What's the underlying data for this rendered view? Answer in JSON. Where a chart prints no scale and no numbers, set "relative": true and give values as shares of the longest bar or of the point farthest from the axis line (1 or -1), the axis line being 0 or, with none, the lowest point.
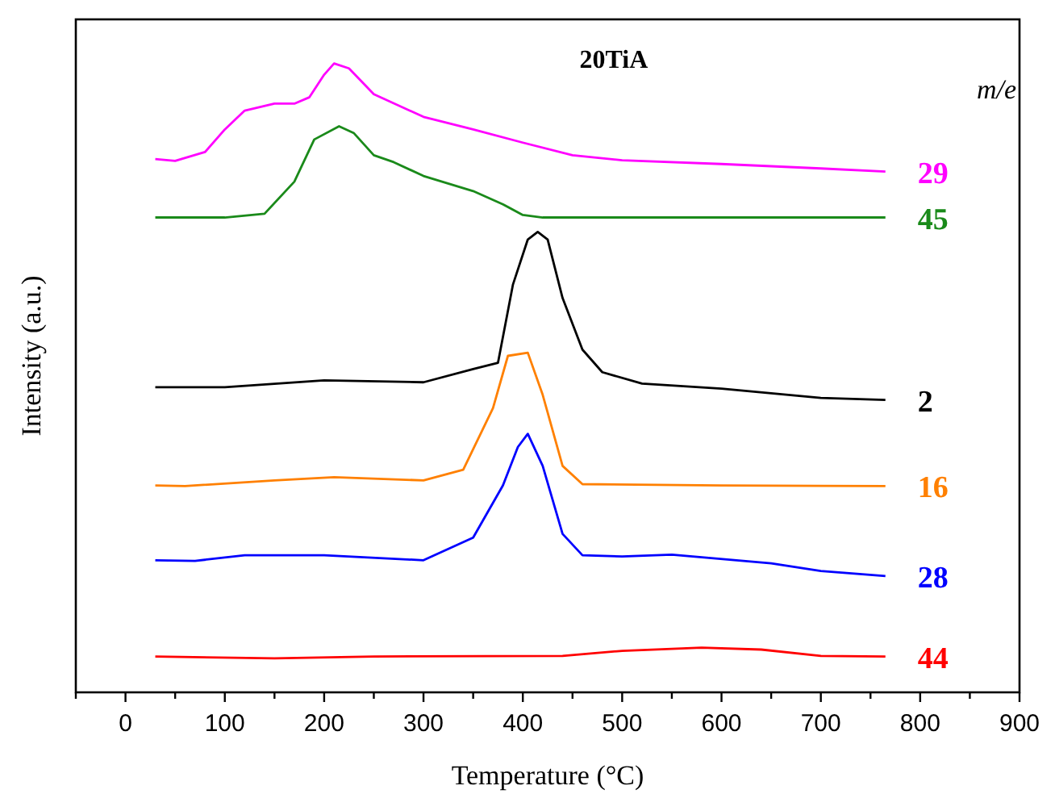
{
  "chart_data": {
    "type": "line",
    "title": "20TiA",
    "xlabel": "Temperature (°C)",
    "ylabel": "Intensity (a.u.)",
    "legend_title": "m/e",
    "relative": true,
    "xlim": [
      -50,
      900
    ],
    "xticks": [
      {
        "value": -50,
        "label": null
      },
      0,
      {
        "value": 50,
        "label": null
      },
      100,
      {
        "value": 150,
        "label": null
      },
      200,
      {
        "value": 250,
        "label": null
      },
      300,
      {
        "value": 350,
        "label": null
      },
      400,
      {
        "value": 450,
        "label": null
      },
      500,
      {
        "value": 550,
        "label": null
      },
      600,
      {
        "value": 650,
        "label": null
      },
      700,
      {
        "value": 750,
        "label": null
      },
      800,
      {
        "value": 850,
        "label": null
      },
      900
    ],
    "grid": false,
    "marker": "none",
    "line_style": "solid",
    "series": [
      {
        "name": "29",
        "color": "#ff00ff",
        "x": [
          30,
          50,
          80,
          100,
          120,
          150,
          170,
          185,
          200,
          210,
          225,
          250,
          300,
          350,
          400,
          450,
          500,
          600,
          700,
          765
        ],
        "values": [
          0.848,
          0.845,
          0.859,
          0.895,
          0.925,
          0.936,
          0.936,
          0.946,
          0.982,
          1.0,
          0.992,
          0.951,
          0.915,
          0.895,
          0.874,
          0.854,
          0.846,
          0.84,
          0.833,
          0.828
        ]
      },
      {
        "name": "45",
        "color": "#1a8a1a",
        "x": [
          30,
          100,
          140,
          170,
          190,
          215,
          230,
          250,
          270,
          300,
          350,
          380,
          400,
          420,
          765
        ],
        "values": [
          0.755,
          0.755,
          0.761,
          0.812,
          0.879,
          0.9,
          0.889,
          0.854,
          0.843,
          0.821,
          0.797,
          0.776,
          0.759,
          0.755,
          0.755
        ]
      },
      {
        "name": "2",
        "color": "#000000",
        "x": [
          30,
          100,
          200,
          300,
          350,
          375,
          390,
          405,
          415,
          425,
          440,
          460,
          480,
          520,
          600,
          700,
          765
        ],
        "values": [
          0.485,
          0.485,
          0.496,
          0.493,
          0.514,
          0.524,
          0.648,
          0.72,
          0.732,
          0.72,
          0.627,
          0.545,
          0.509,
          0.491,
          0.483,
          0.468,
          0.465
        ]
      },
      {
        "name": "16",
        "color": "#ff8000",
        "x": [
          30,
          60,
          150,
          210,
          300,
          340,
          370,
          385,
          405,
          420,
          440,
          460,
          600,
          765
        ],
        "values": [
          0.329,
          0.328,
          0.337,
          0.342,
          0.337,
          0.354,
          0.452,
          0.535,
          0.54,
          0.473,
          0.36,
          0.331,
          0.329,
          0.328
        ]
      },
      {
        "name": "28",
        "color": "#0000ff",
        "x": [
          30,
          70,
          120,
          200,
          300,
          350,
          380,
          395,
          405,
          420,
          440,
          460,
          500,
          550,
          650,
          700,
          765
        ],
        "values": [
          0.21,
          0.209,
          0.218,
          0.218,
          0.21,
          0.246,
          0.329,
          0.39,
          0.411,
          0.36,
          0.252,
          0.218,
          0.216,
          0.219,
          0.205,
          0.193,
          0.185
        ]
      },
      {
        "name": "44",
        "color": "#ff0000",
        "x": [
          30,
          150,
          250,
          440,
          500,
          580,
          640,
          700,
          765
        ],
        "values": [
          0.057,
          0.054,
          0.057,
          0.058,
          0.066,
          0.071,
          0.068,
          0.058,
          0.057
        ]
      }
    ]
  }
}
